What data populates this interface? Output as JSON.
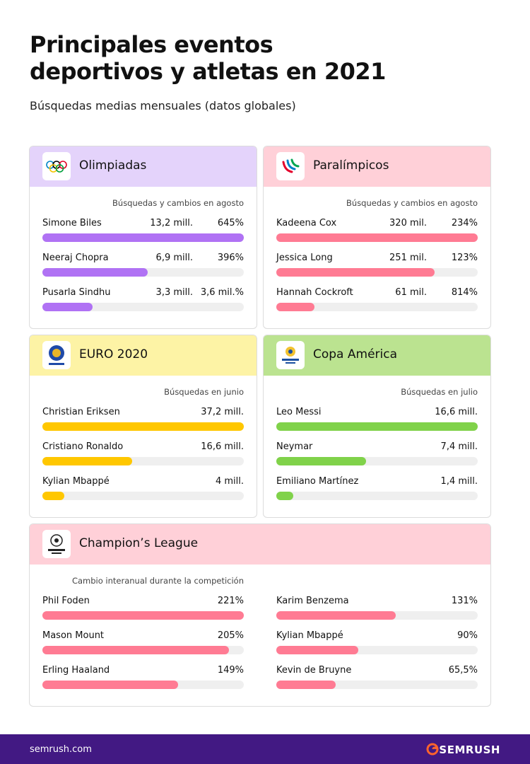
{
  "header": {
    "title": "Principales eventos deportivos y atletas en 2021",
    "subtitle": "Búsquedas medias mensuales (datos globales)"
  },
  "panels": [
    {
      "title": "Olimpiadas",
      "note": "Búsquedas y cambios en agosto",
      "header_color": "#e4d3fb",
      "bar_color": "#b072f4",
      "rows": [
        {
          "name": "Simone Biles",
          "value": 13.2,
          "value_label": "13,2 mill.",
          "change": "645%"
        },
        {
          "name": "Neeraj Chopra",
          "value": 6.9,
          "value_label": "6,9 mill.",
          "change": "396%"
        },
        {
          "name": "Pusarla Sindhu",
          "value": 3.3,
          "value_label": "3,3 mill.",
          "change": "3,6 mil.%"
        }
      ]
    },
    {
      "title": "Paralímpicos",
      "note": "Búsquedas y cambios en agosto",
      "header_color": "#ffd0d8",
      "bar_color": "#ff7b93",
      "rows": [
        {
          "name": "Kadeena Cox",
          "value": 320,
          "value_label": "320 mil.",
          "change": "234%"
        },
        {
          "name": "Jessica Long",
          "value": 251,
          "value_label": "251 mil.",
          "change": "123%"
        },
        {
          "name": "Hannah Cockroft",
          "value": 61,
          "value_label": "61 mil.",
          "change": "814%"
        }
      ]
    },
    {
      "title": "EURO 2020",
      "note": "Búsquedas en junio",
      "header_color": "#fdf3a5",
      "bar_color": "#ffc700",
      "rows": [
        {
          "name": "Christian Eriksen",
          "value": 37.2,
          "value_label": "37,2 mill."
        },
        {
          "name": "Cristiano Ronaldo",
          "value": 16.6,
          "value_label": "16,6 mill."
        },
        {
          "name": "Kylian Mbappé",
          "value": 4,
          "value_label": "4 mill."
        }
      ]
    },
    {
      "title": "Copa América",
      "note": "Búsquedas en julio",
      "header_color": "#bbe390",
      "bar_color": "#80d24a",
      "rows": [
        {
          "name": "Leo Messi",
          "value": 16.6,
          "value_label": "16,6 mill."
        },
        {
          "name": "Neymar",
          "value": 7.4,
          "value_label": "7,4 mill."
        },
        {
          "name": "Emiliano Martínez",
          "value": 1.4,
          "value_label": "1,4 mill."
        }
      ]
    },
    {
      "title": "Champion’s League",
      "note": "Cambio interanual durante la competición",
      "header_color": "#ffd0d8",
      "bar_color": "#ff7b93",
      "rows": [
        {
          "name": "Phil Foden",
          "value": 221,
          "value_label": "221%"
        },
        {
          "name": "Mason Mount",
          "value": 205,
          "value_label": "205%"
        },
        {
          "name": "Erling Haaland",
          "value": 149,
          "value_label": "149%"
        },
        {
          "name": "Karim Benzema",
          "value": 131,
          "value_label": "131%"
        },
        {
          "name": "Kylian Mbappé",
          "value": 90,
          "value_label": "90%"
        },
        {
          "name": "Kevin de Bruyne",
          "value": 65.5,
          "value_label": "65,5%"
        }
      ]
    }
  ],
  "footer": {
    "site": "semrush.com",
    "brand": "SEMRUSH"
  }
}
